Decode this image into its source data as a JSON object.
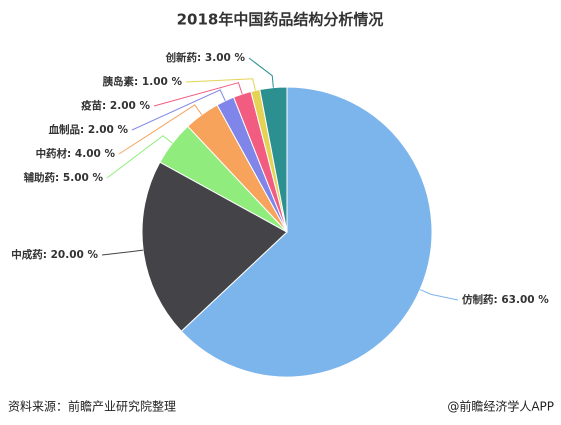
{
  "chart_data": {
    "type": "pie",
    "title": "2018年中国药品结构分析情况",
    "values": [
      63,
      20,
      5,
      4,
      2,
      2,
      1,
      3
    ],
    "value_labels": [
      "仿制药: 63.00 %",
      "中成药: 20.00 %",
      "辅助药: 5.00 %",
      "中药材: 4.00 %",
      "血制品: 2.00 %",
      "疫苗: 2.00 %",
      "胰岛素: 1.00 %",
      "创新药: 3.00 %"
    ],
    "colors": [
      "#7cb5ec",
      "#434348",
      "#90ed7d",
      "#f7a35c",
      "#8085e9",
      "#f15c80",
      "#e4d354",
      "#2b908f"
    ]
  },
  "footer": {
    "source": "资料来源：前瞻产业研究院整理",
    "credit": "@前瞻经济学人APP"
  }
}
